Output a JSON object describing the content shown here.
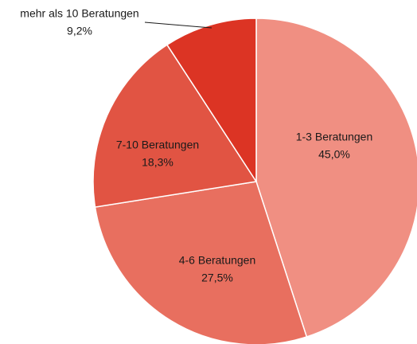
{
  "chart_data": {
    "type": "pie",
    "categories": [
      "1-3 Beratungen",
      "4-6 Beratungen",
      "7-10 Beratungen",
      "mehr als 10 Beratungen"
    ],
    "values": [
      45.0,
      27.5,
      18.3,
      9.2
    ],
    "value_labels": [
      "45,0%",
      "27,5%",
      "18,3%",
      "9,2%"
    ],
    "colors": [
      "#f08f82",
      "#e86f5f",
      "#e15443",
      "#dc3424"
    ]
  }
}
